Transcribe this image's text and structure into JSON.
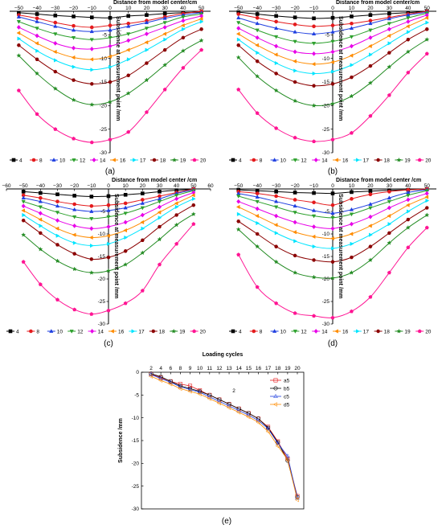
{
  "legend_labels": [
    "4",
    "8",
    "10",
    "12",
    "14",
    "16",
    "17",
    "18",
    "19",
    "20"
  ],
  "colors": [
    "#000000",
    "#e41a1c",
    "#1f3fe0",
    "#2ca02c",
    "#e800e8",
    "#ff8c00",
    "#00e5ff",
    "#8b0000",
    "#228b22",
    "#ff1493"
  ],
  "markers": [
    "square",
    "circle",
    "triangle",
    "triangle-down",
    "diamond",
    "triangle-left",
    "triangle-right",
    "hexagon",
    "star",
    "pentagon"
  ],
  "top_axis_label": "Distance from model center/cm",
  "top_axis_label_c": "Distance from model center /cm",
  "y_axis_label": "Subsidence at measurement point /mm",
  "captions": {
    "a": "(a)",
    "b": "(b)",
    "c": "(c)",
    "d": "(d)",
    "e": "(e)"
  },
  "chart_data": [
    {
      "panel": "a",
      "type": "line",
      "xlabel": "Distance from model center/cm",
      "ylabel": "Subsidence at measurement point /mm",
      "xlim": [
        -55,
        55
      ],
      "ylim": [
        -30,
        0
      ],
      "xticks": [
        -50,
        -40,
        -30,
        -20,
        -10,
        0,
        10,
        20,
        30,
        40,
        50
      ],
      "yticks": [
        0,
        -5,
        -10,
        -15,
        -20,
        -25,
        -30
      ],
      "x": [
        -50,
        -40,
        -30,
        -20,
        -10,
        0,
        10,
        20,
        30,
        40,
        50
      ],
      "series": [
        {
          "name": "4",
          "values": [
            -0.3,
            -0.6,
            -0.9,
            -1.1,
            -1.3,
            -1.4,
            -1.0,
            -0.8,
            -0.5,
            -0.3,
            -0.2
          ]
        },
        {
          "name": "8",
          "values": [
            -0.8,
            -1.5,
            -2.4,
            -3.1,
            -3.4,
            -3.0,
            -2.6,
            -2.0,
            -1.2,
            -0.5,
            0.0
          ]
        },
        {
          "name": "10",
          "values": [
            -1.2,
            -2.2,
            -3.2,
            -4.0,
            -4.3,
            -4.0,
            -3.2,
            -2.4,
            -1.5,
            -0.8,
            -0.3
          ]
        },
        {
          "name": "12",
          "values": [
            -2.2,
            -3.6,
            -4.8,
            -5.6,
            -6.0,
            -5.6,
            -4.8,
            -3.6,
            -2.4,
            -1.2,
            -0.6
          ]
        },
        {
          "name": "14",
          "values": [
            -3.4,
            -5.2,
            -6.8,
            -7.8,
            -8.0,
            -7.4,
            -6.2,
            -4.8,
            -3.4,
            -2.0,
            -1.0
          ]
        },
        {
          "name": "16",
          "values": [
            -4.6,
            -6.8,
            -8.6,
            -9.8,
            -10.2,
            -9.6,
            -8.2,
            -6.6,
            -4.8,
            -3.0,
            -1.6
          ]
        },
        {
          "name": "17",
          "values": [
            -5.8,
            -8.4,
            -10.4,
            -11.8,
            -12.4,
            -11.8,
            -10.2,
            -8.2,
            -6.0,
            -3.8,
            -2.2
          ]
        },
        {
          "name": "18",
          "values": [
            -7.2,
            -10.2,
            -12.8,
            -14.6,
            -15.4,
            -15.0,
            -13.6,
            -11.0,
            -8.2,
            -5.6,
            -3.8
          ]
        },
        {
          "name": "19",
          "values": [
            -9.4,
            -13.2,
            -16.4,
            -18.8,
            -19.8,
            -19.2,
            -17.4,
            -14.6,
            -11.4,
            -8.4,
            -6.2
          ]
        },
        {
          "name": "20",
          "values": [
            -16.8,
            -21.8,
            -25.0,
            -27.0,
            -27.8,
            -27.2,
            -25.6,
            -21.4,
            -16.6,
            -12.0,
            -8.2
          ]
        }
      ]
    },
    {
      "panel": "b",
      "type": "line",
      "xlabel": "Distance from model center/cm",
      "ylabel": "Subsidence at measurement point /mm",
      "xlim": [
        -55,
        55
      ],
      "ylim": [
        -30,
        0
      ],
      "xticks": [
        -50,
        -40,
        -30,
        -20,
        -10,
        0,
        10,
        20,
        30,
        40,
        50
      ],
      "yticks": [
        0,
        -5,
        -10,
        -15,
        -20,
        -25,
        -30
      ],
      "x": [
        -50,
        -40,
        -30,
        -20,
        -10,
        0,
        10,
        20,
        30,
        40,
        50
      ],
      "series": [
        {
          "name": "4",
          "values": [
            -0.2,
            -0.6,
            -1.0,
            -1.3,
            -1.5,
            -1.4,
            -1.1,
            -0.8,
            -0.5,
            -0.3,
            0.0
          ]
        },
        {
          "name": "8",
          "values": [
            -0.6,
            -1.4,
            -2.2,
            -2.8,
            -3.2,
            -3.0,
            -2.6,
            -2.0,
            -1.3,
            -0.6,
            0.0
          ]
        },
        {
          "name": "10",
          "values": [
            -1.4,
            -2.6,
            -3.6,
            -4.4,
            -4.8,
            -4.4,
            -3.6,
            -2.6,
            -1.6,
            -0.8,
            -0.2
          ]
        },
        {
          "name": "12",
          "values": [
            -2.4,
            -4.0,
            -5.4,
            -6.4,
            -6.8,
            -6.4,
            -5.4,
            -4.0,
            -2.6,
            -1.4,
            -0.4
          ]
        },
        {
          "name": "14",
          "values": [
            -3.6,
            -5.6,
            -7.4,
            -8.6,
            -9.0,
            -8.6,
            -7.4,
            -5.6,
            -3.8,
            -2.2,
            -0.8
          ]
        },
        {
          "name": "16",
          "values": [
            -4.8,
            -7.2,
            -9.2,
            -10.6,
            -11.2,
            -10.8,
            -9.4,
            -7.4,
            -5.2,
            -3.2,
            -1.4
          ]
        },
        {
          "name": "17",
          "values": [
            -6.0,
            -8.8,
            -11.0,
            -12.6,
            -13.2,
            -12.8,
            -11.4,
            -9.2,
            -6.8,
            -4.4,
            -2.4
          ]
        },
        {
          "name": "18",
          "values": [
            -7.2,
            -10.6,
            -13.2,
            -15.0,
            -15.8,
            -15.4,
            -14.0,
            -11.6,
            -8.8,
            -6.0,
            -3.8
          ]
        },
        {
          "name": "19",
          "values": [
            -9.8,
            -13.8,
            -16.8,
            -19.0,
            -20.0,
            -19.6,
            -18.0,
            -15.2,
            -11.8,
            -8.6,
            -6.0
          ]
        },
        {
          "name": "20",
          "values": [
            -16.6,
            -21.6,
            -24.8,
            -26.8,
            -27.6,
            -27.2,
            -25.8,
            -22.2,
            -17.8,
            -13.0,
            -9.0
          ]
        }
      ]
    },
    {
      "panel": "c",
      "type": "line",
      "xlabel": "Distance from model center /cm",
      "ylabel": "Subsidence at measurement point /mm",
      "xlim": [
        -60,
        60
      ],
      "ylim": [
        -30,
        0
      ],
      "xticks": [
        -60,
        -50,
        -40,
        -30,
        -20,
        -10,
        0,
        10,
        20,
        30,
        40,
        50,
        60
      ],
      "yticks": [
        0,
        -5,
        -10,
        -15,
        -20,
        -25,
        -30
      ],
      "x": [
        -50,
        -40,
        -30,
        -20,
        -10,
        0,
        10,
        20,
        30,
        40,
        50
      ],
      "series": [
        {
          "name": "4",
          "values": [
            -0.6,
            -0.9,
            -1.2,
            -1.5,
            -1.7,
            -1.6,
            -1.3,
            -1.0,
            -0.6,
            -0.3,
            -0.1
          ]
        },
        {
          "name": "8",
          "values": [
            -1.4,
            -2.0,
            -2.8,
            -3.4,
            -3.8,
            -3.6,
            -3.2,
            -2.4,
            -1.6,
            -0.8,
            0.0
          ]
        },
        {
          "name": "10",
          "values": [
            -2.0,
            -2.8,
            -3.8,
            -4.6,
            -5.0,
            -4.8,
            -4.2,
            -3.2,
            -2.2,
            -1.0,
            -0.2
          ]
        },
        {
          "name": "12",
          "values": [
            -2.8,
            -4.0,
            -5.2,
            -6.2,
            -6.6,
            -6.2,
            -5.4,
            -4.2,
            -2.8,
            -1.4,
            -0.4
          ]
        },
        {
          "name": "14",
          "values": [
            -3.8,
            -5.4,
            -7.0,
            -8.2,
            -8.8,
            -8.4,
            -7.4,
            -5.8,
            -4.0,
            -2.2,
            -0.8
          ]
        },
        {
          "name": "16",
          "values": [
            -4.8,
            -6.8,
            -8.8,
            -10.2,
            -10.8,
            -10.4,
            -9.2,
            -7.4,
            -5.2,
            -3.2,
            -1.4
          ]
        },
        {
          "name": "17",
          "values": [
            -5.8,
            -8.2,
            -10.4,
            -12.0,
            -12.6,
            -12.2,
            -10.8,
            -8.8,
            -6.4,
            -4.0,
            -2.2
          ]
        },
        {
          "name": "18",
          "values": [
            -7.0,
            -9.8,
            -12.4,
            -14.4,
            -15.6,
            -15.2,
            -13.8,
            -11.4,
            -8.4,
            -5.8,
            -3.6
          ]
        },
        {
          "name": "19",
          "values": [
            -10.2,
            -13.4,
            -16.0,
            -17.8,
            -18.6,
            -18.2,
            -16.8,
            -14.2,
            -11.2,
            -8.0,
            -5.6
          ]
        },
        {
          "name": "20",
          "values": [
            -16.2,
            -21.2,
            -24.6,
            -26.8,
            -27.8,
            -27.0,
            -25.4,
            -22.6,
            -16.8,
            -12.2,
            -7.8
          ]
        }
      ]
    },
    {
      "panel": "d",
      "type": "line",
      "xlabel": "Distance from model center /cm",
      "ylabel": "Subsidence at measurement point /mm",
      "xlim": [
        -55,
        55
      ],
      "ylim": [
        -30,
        0
      ],
      "xticks": [
        -50,
        -40,
        -30,
        -20,
        -10,
        0,
        10,
        20,
        30,
        40,
        50
      ],
      "yticks": [
        0,
        -5,
        -10,
        -15,
        -20,
        -25,
        -30
      ],
      "x": [
        -50,
        -40,
        -30,
        -20,
        -10,
        0,
        10,
        20,
        30,
        40,
        50
      ],
      "series": [
        {
          "name": "4",
          "values": [
            -0.2,
            -0.4,
            -0.6,
            -0.8,
            -0.9,
            -1.0,
            -0.7,
            -0.5,
            -0.3,
            -0.2,
            -0.1
          ]
        },
        {
          "name": "8",
          "values": [
            -0.6,
            -1.0,
            -1.6,
            -2.4,
            -3.0,
            -3.6,
            -2.2,
            -1.2,
            -0.6,
            -0.2,
            0.0
          ]
        },
        {
          "name": "10",
          "values": [
            -1.0,
            -1.8,
            -2.8,
            -3.8,
            -4.8,
            -5.4,
            -4.6,
            -3.4,
            -2.0,
            -0.8,
            -0.2
          ]
        },
        {
          "name": "12",
          "values": [
            -1.6,
            -2.8,
            -4.0,
            -5.2,
            -6.0,
            -6.4,
            -5.6,
            -4.2,
            -2.8,
            -1.4,
            -0.4
          ]
        },
        {
          "name": "14",
          "values": [
            -2.8,
            -4.4,
            -6.0,
            -7.4,
            -8.4,
            -8.8,
            -7.8,
            -6.2,
            -4.2,
            -2.4,
            -1.0
          ]
        },
        {
          "name": "16",
          "values": [
            -4.0,
            -6.0,
            -8.0,
            -9.6,
            -10.6,
            -11.0,
            -10.0,
            -8.2,
            -6.0,
            -3.6,
            -1.8
          ]
        },
        {
          "name": "17",
          "values": [
            -5.6,
            -7.6,
            -9.8,
            -11.6,
            -12.8,
            -13.2,
            -12.2,
            -10.2,
            -7.8,
            -5.0,
            -2.6
          ]
        },
        {
          "name": "18",
          "values": [
            -7.2,
            -10.0,
            -12.8,
            -14.8,
            -15.8,
            -16.2,
            -15.2,
            -12.8,
            -9.8,
            -6.8,
            -4.2
          ]
        },
        {
          "name": "19",
          "values": [
            -9.0,
            -12.8,
            -16.2,
            -18.6,
            -19.6,
            -19.8,
            -18.6,
            -15.8,
            -12.0,
            -8.6,
            -5.8
          ]
        },
        {
          "name": "20",
          "values": [
            -14.6,
            -21.8,
            -25.4,
            -27.6,
            -28.2,
            -28.6,
            -27.2,
            -24.0,
            -18.6,
            -13.0,
            -8.6
          ]
        }
      ]
    },
    {
      "panel": "e",
      "type": "line",
      "title": "Loading cycles",
      "ylabel": "Subsidence /mm",
      "annotation": "2",
      "ylim": [
        -30,
        0
      ],
      "xticks": [
        2,
        4,
        6,
        8,
        9,
        10,
        11,
        12,
        13,
        14,
        15,
        16,
        17,
        18,
        19,
        20
      ],
      "yticks": [
        0,
        -5,
        -10,
        -15,
        -20,
        -25,
        -30
      ],
      "categories": [
        2,
        4,
        6,
        8,
        9,
        10,
        11,
        12,
        13,
        14,
        15,
        16,
        17,
        18,
        19,
        20
      ],
      "series": [
        {
          "name": "a5",
          "marker": "square",
          "color": "#e41a1c",
          "values": [
            -0.4,
            -1.2,
            -2.0,
            -2.6,
            -3.0,
            -4.0,
            -5.0,
            -6.0,
            -7.0,
            -8.0,
            -9.0,
            -10.2,
            -12.0,
            -15.2,
            -19.0,
            -27.2
          ]
        },
        {
          "name": "b5",
          "marker": "circle",
          "color": "#000000",
          "values": [
            -0.3,
            -1.0,
            -2.0,
            -3.0,
            -3.6,
            -4.2,
            -5.0,
            -6.0,
            -7.0,
            -8.0,
            -9.0,
            -10.2,
            -12.2,
            -15.4,
            -19.4,
            -27.4
          ]
        },
        {
          "name": "c5",
          "marker": "triangle",
          "color": "#1f3fe0",
          "values": [
            -0.5,
            -1.4,
            -2.2,
            -3.2,
            -3.8,
            -4.4,
            -5.4,
            -6.4,
            -7.4,
            -8.4,
            -9.4,
            -10.6,
            -12.4,
            -15.6,
            -18.4,
            -27.6
          ]
        },
        {
          "name": "d5",
          "marker": "triangle-left",
          "color": "#ff8c00",
          "values": [
            -0.9,
            -1.8,
            -2.6,
            -3.6,
            -4.2,
            -4.8,
            -5.8,
            -6.8,
            -7.8,
            -8.8,
            -9.8,
            -11.0,
            -13.0,
            -16.2,
            -19.2,
            -28.0
          ]
        }
      ]
    }
  ]
}
